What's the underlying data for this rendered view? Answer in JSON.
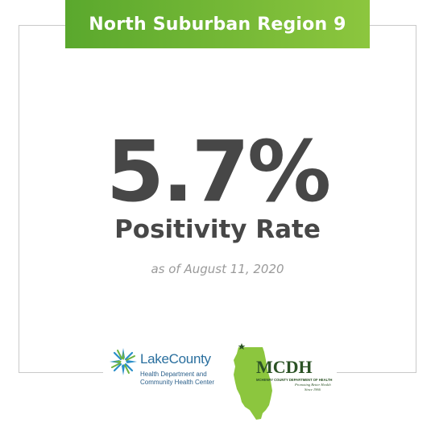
{
  "banner": {
    "title": "North Suburban Region 9"
  },
  "stat": {
    "value": "5.7%",
    "label": "Positivity Rate",
    "as_of": "as of August 11, 2020"
  },
  "logos": {
    "lake_county": {
      "name": "LakeCounty",
      "subtitle_line1": "Health Department and",
      "subtitle_line2": "Community Health Center",
      "icon": "starburst-icon"
    },
    "mcdh": {
      "name": "MCDH",
      "line1": "MCHENRY COUNTY DEPARTMENT OF HEALTH",
      "tagline": "Promoting Better Health",
      "since": "Since 1966",
      "icon": "illinois-state-icon"
    }
  },
  "colors": {
    "banner_start": "#5aa82d",
    "banner_end": "#8cc63e",
    "stat_text": "#474747",
    "muted_text": "#9a9a9a",
    "frame": "#c9c9c9"
  }
}
